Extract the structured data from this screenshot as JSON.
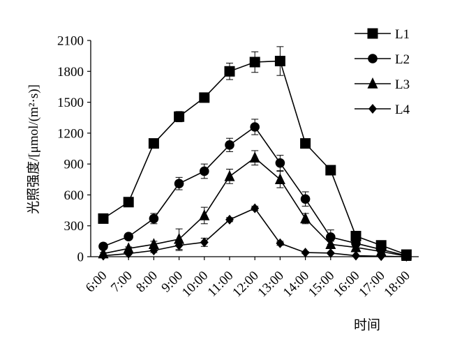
{
  "chart_data": {
    "type": "line",
    "title": "",
    "xlabel": "时间",
    "ylabel": "光照强度/[μmol/(m²·s)]",
    "ylim": [
      0,
      2100
    ],
    "yticks": [
      0,
      300,
      600,
      900,
      1200,
      1500,
      1800,
      2100
    ],
    "grid": false,
    "legend_position": "top-right",
    "categories": [
      "6:00",
      "7:00",
      "8:00",
      "9:00",
      "10:00",
      "11:00",
      "12:00",
      "13:00",
      "14:00",
      "15:00",
      "16:00",
      "17:00",
      "18:00"
    ],
    "series": [
      {
        "name": "L1",
        "marker": "square",
        "values": [
          370,
          530,
          1100,
          1360,
          1545,
          1800,
          1890,
          1900,
          1100,
          840,
          200,
          110,
          20
        ],
        "errors": [
          20,
          20,
          25,
          50,
          35,
          80,
          100,
          140,
          25,
          20,
          15,
          10,
          5
        ]
      },
      {
        "name": "L2",
        "marker": "circle",
        "values": [
          100,
          195,
          370,
          710,
          830,
          1085,
          1260,
          910,
          560,
          190,
          130,
          70,
          10
        ],
        "errors": [
          15,
          15,
          50,
          60,
          70,
          65,
          75,
          75,
          70,
          70,
          30,
          20,
          5
        ]
      },
      {
        "name": "L3",
        "marker": "triangle",
        "values": [
          30,
          80,
          120,
          170,
          400,
          780,
          960,
          750,
          370,
          120,
          90,
          50,
          5
        ],
        "errors": [
          10,
          15,
          30,
          100,
          80,
          70,
          70,
          80,
          50,
          30,
          20,
          15,
          5
        ]
      },
      {
        "name": "L4",
        "marker": "diamond",
        "values": [
          10,
          30,
          60,
          110,
          140,
          360,
          470,
          130,
          40,
          35,
          10,
          5,
          0
        ],
        "errors": [
          5,
          10,
          20,
          50,
          40,
          20,
          20,
          20,
          10,
          10,
          5,
          5,
          2
        ]
      }
    ]
  }
}
